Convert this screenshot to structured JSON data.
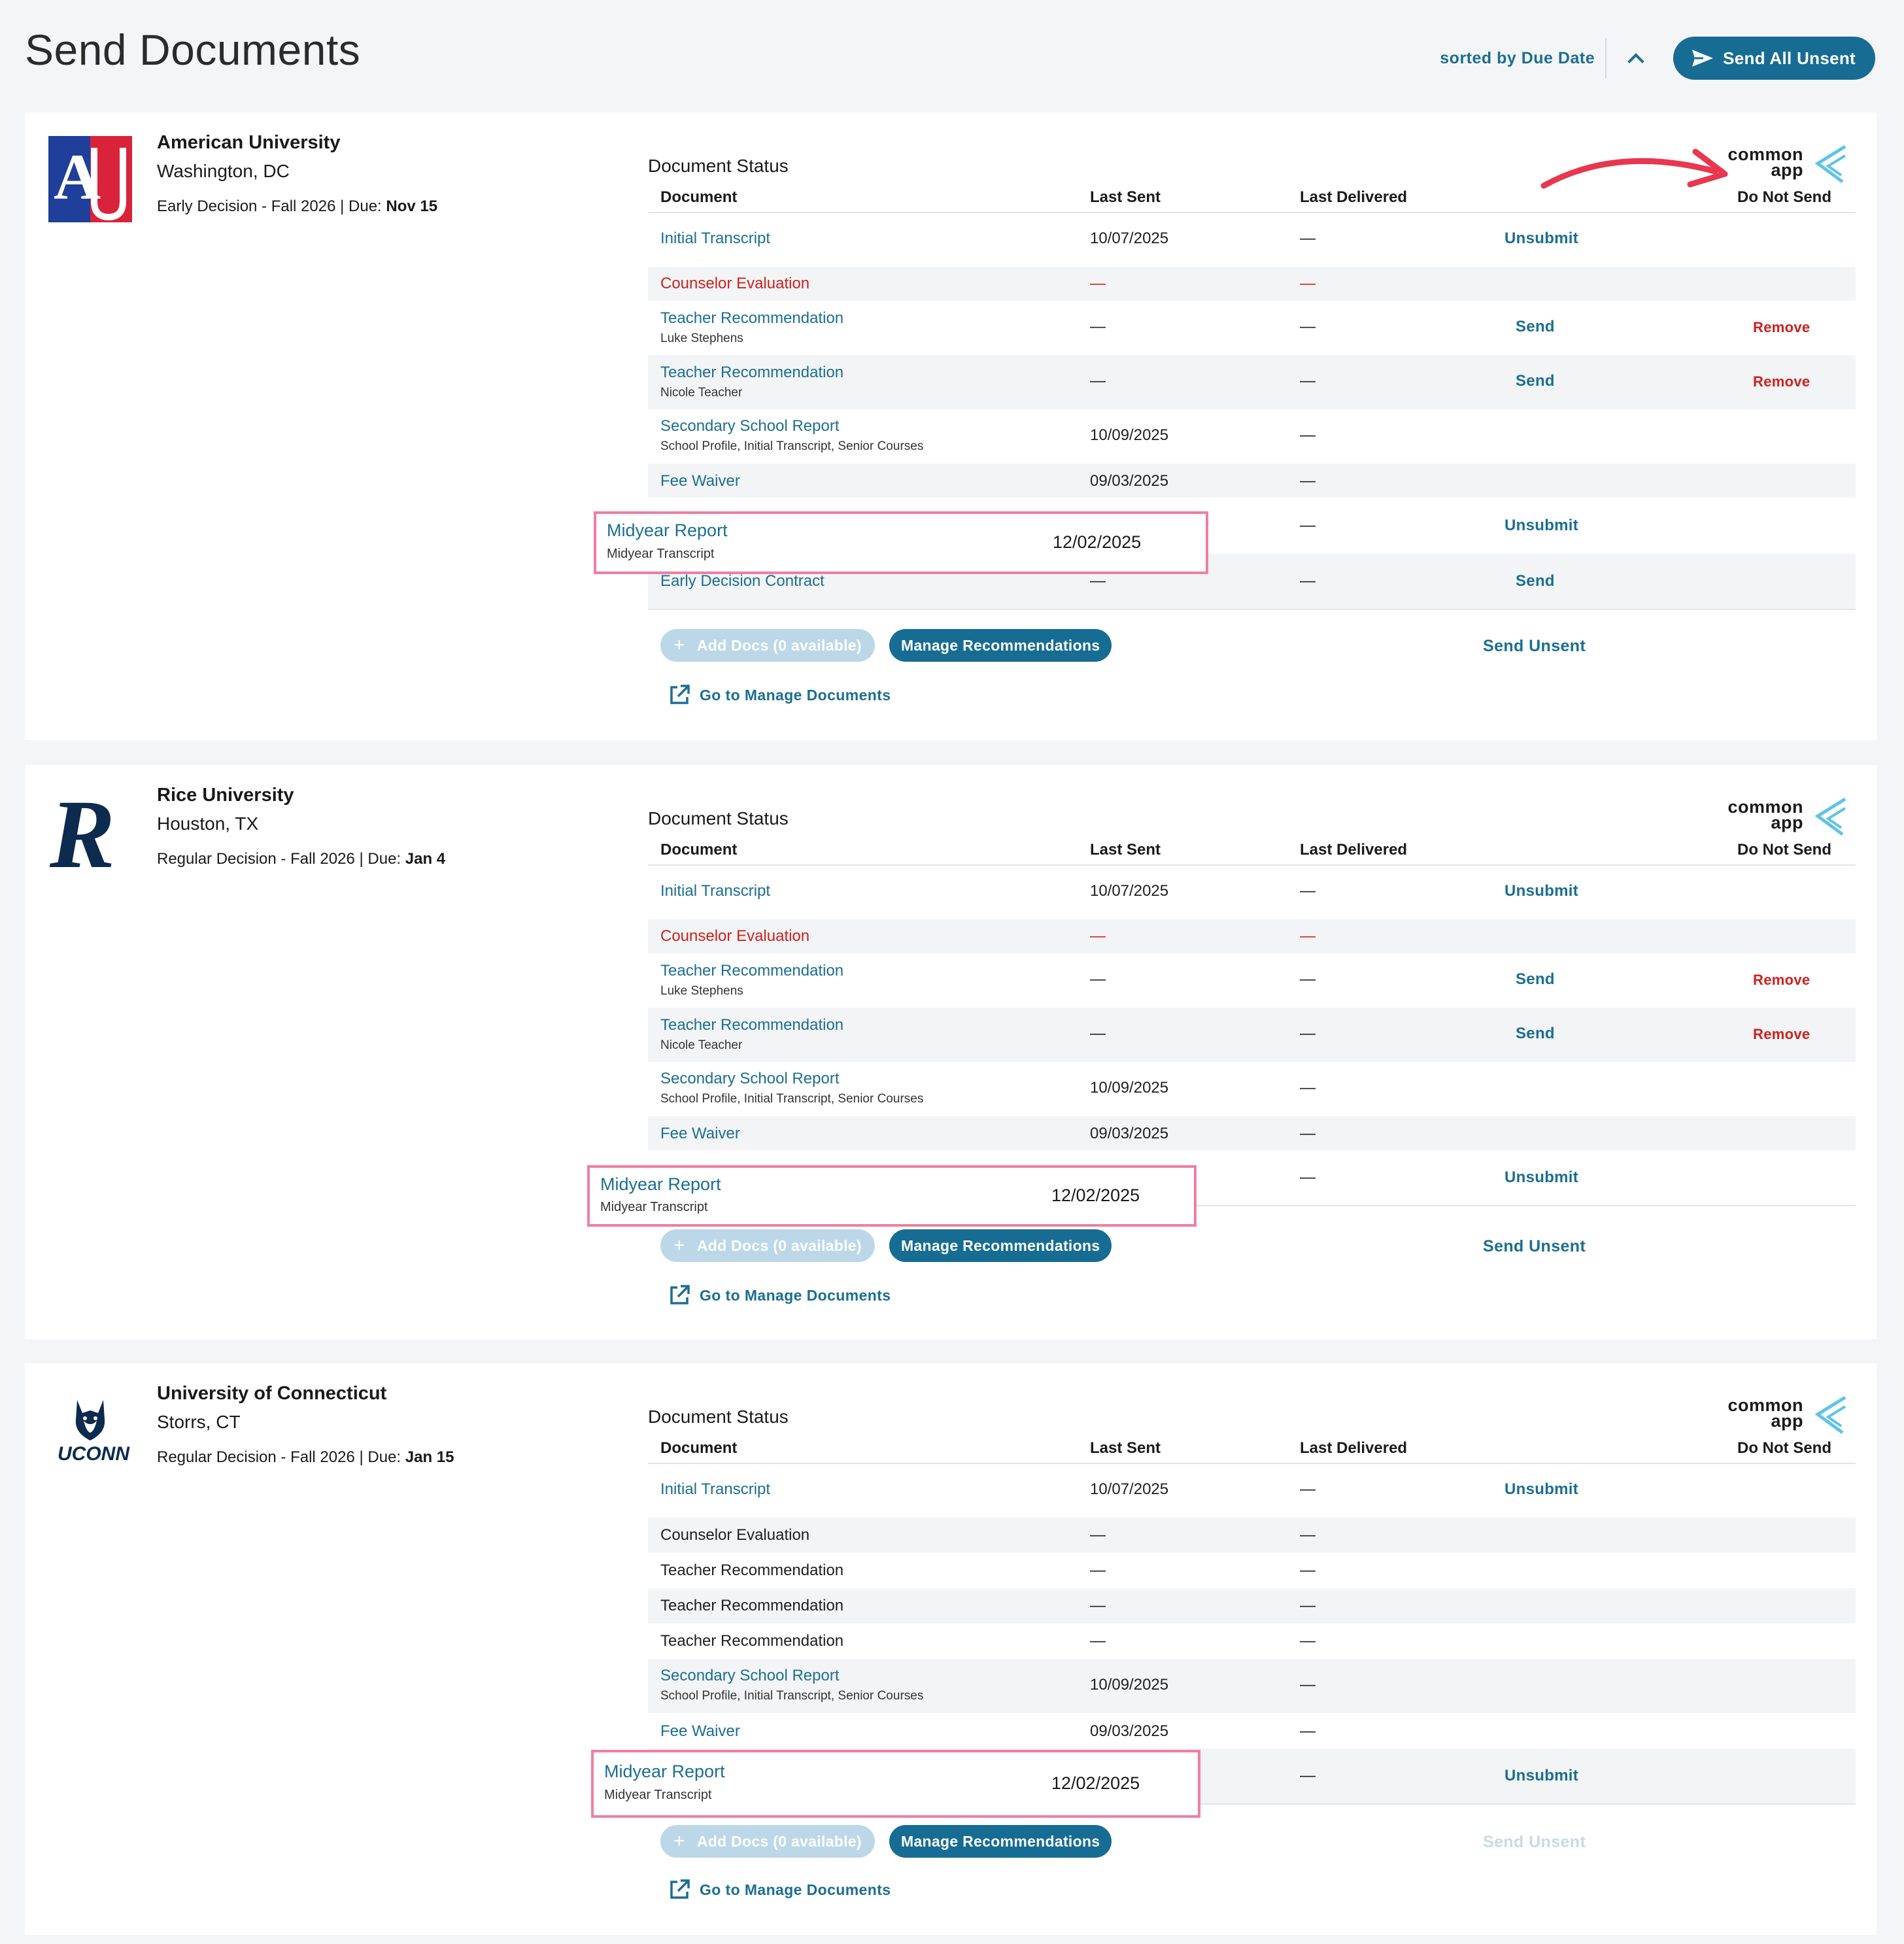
{
  "page": {
    "title": "Send Documents",
    "sort_label": "sorted by Due Date",
    "send_all_label": "Send All Unsent"
  },
  "colors": {
    "accent": "#176c93",
    "link": "#1b6e93",
    "danger": "#d0201d",
    "highlight_border": "#ef7fa3",
    "annotation_arrow": "#e8374f"
  },
  "table_headers": {
    "document_status": "Document Status",
    "document": "Document",
    "last_sent": "Last Sent",
    "last_delivered": "Last Delivered",
    "do_not_send": "Do Not Send"
  },
  "commonapp": {
    "line1": "common",
    "line2": "app"
  },
  "buttons": {
    "add_docs": "Add Docs (0 available)",
    "manage_recs": "Manage Recommendations",
    "send_unsent": "Send Unsent",
    "go_to_manage": "Go to Manage Documents",
    "unsubmit": "Unsubmit",
    "send": "Send",
    "remove": "Remove"
  },
  "schools": [
    {
      "name": "American University",
      "location": "Washington, DC",
      "plan": "Early Decision - Fall 2026 | Due: ",
      "due": "Nov 15",
      "rows": [
        {
          "doc": "Initial Transcript",
          "sent": "10/07/2025",
          "delivered": "—",
          "action": "Unsubmit"
        },
        {
          "doc": "Counselor Evaluation",
          "sent": "—",
          "delivered": "—"
        },
        {
          "doc": "Teacher Recommendation",
          "sub": "Luke Stephens",
          "sent": "—",
          "delivered": "—",
          "action": "Send",
          "dns": "Remove"
        },
        {
          "doc": "Teacher Recommendation",
          "sub": "Nicole Teacher",
          "sent": "—",
          "delivered": "—",
          "action": "Send",
          "dns": "Remove"
        },
        {
          "doc": "Secondary School Report",
          "sub": "School Profile, Initial Transcript, Senior Courses",
          "sent": "10/09/2025",
          "delivered": "—"
        },
        {
          "doc": "Fee Waiver",
          "sent": "09/03/2025",
          "delivered": "—"
        },
        {
          "doc": "Midyear Report",
          "sub": "Midyear Transcript",
          "sent": "12/02/2025",
          "delivered": "—",
          "action": "Unsubmit"
        },
        {
          "doc": "Early Decision Contract",
          "sent": "—",
          "delivered": "—",
          "action": "Send"
        }
      ]
    },
    {
      "name": "Rice University",
      "location": "Houston, TX",
      "plan": "Regular Decision - Fall 2026 | Due: ",
      "due": "Jan 4",
      "rows": [
        {
          "doc": "Initial Transcript",
          "sent": "10/07/2025",
          "delivered": "—",
          "action": "Unsubmit"
        },
        {
          "doc": "Counselor Evaluation",
          "sent": "—",
          "delivered": "—"
        },
        {
          "doc": "Teacher Recommendation",
          "sub": "Luke Stephens",
          "sent": "—",
          "delivered": "—",
          "action": "Send",
          "dns": "Remove"
        },
        {
          "doc": "Teacher Recommendation",
          "sub": "Nicole Teacher",
          "sent": "—",
          "delivered": "—",
          "action": "Send",
          "dns": "Remove"
        },
        {
          "doc": "Secondary School Report",
          "sub": "School Profile, Initial Transcript, Senior Courses",
          "sent": "10/09/2025",
          "delivered": "—"
        },
        {
          "doc": "Fee Waiver",
          "sent": "09/03/2025",
          "delivered": "—"
        },
        {
          "doc": "Midyear Report",
          "sub": "Midyear Transcript",
          "sent": "12/02/2025",
          "delivered": "—",
          "action": "Unsubmit"
        }
      ]
    },
    {
      "name": "University of Connecticut",
      "location": "Storrs, CT",
      "plan": "Regular Decision - Fall 2026 | Due: ",
      "due": "Jan 15",
      "rows": [
        {
          "doc": "Initial Transcript",
          "sent": "10/07/2025",
          "delivered": "—",
          "action": "Unsubmit"
        },
        {
          "doc": "Counselor Evaluation",
          "sent": "—",
          "delivered": "—"
        },
        {
          "doc": "Teacher Recommendation",
          "sent": "—",
          "delivered": "—"
        },
        {
          "doc": "Teacher Recommendation",
          "sent": "—",
          "delivered": "—"
        },
        {
          "doc": "Teacher Recommendation",
          "sent": "—",
          "delivered": "—"
        },
        {
          "doc": "Secondary School Report",
          "sub": "School Profile, Initial Transcript, Senior Courses",
          "sent": "10/09/2025",
          "delivered": "—"
        },
        {
          "doc": "Fee Waiver",
          "sent": "09/03/2025",
          "delivered": "—"
        },
        {
          "doc": "Midyear Report",
          "sub": "Midyear Transcript",
          "sent": "12/02/2025",
          "delivered": "—",
          "action": "Unsubmit"
        }
      ]
    }
  ]
}
